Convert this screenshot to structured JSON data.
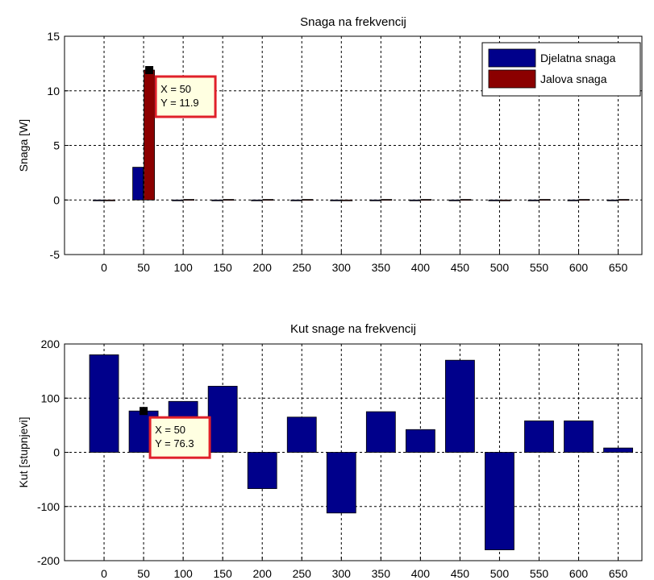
{
  "chart_data": [
    {
      "type": "bar",
      "title": "Snaga na frekvencij",
      "xlabel": "",
      "ylabel": "Snaga [W]",
      "ylim": [
        -5,
        15
      ],
      "xlim": [
        -50,
        680
      ],
      "yticks": [
        -5,
        0,
        5,
        10,
        15
      ],
      "xticks": [
        0,
        50,
        100,
        150,
        200,
        250,
        300,
        350,
        400,
        450,
        500,
        550,
        600,
        650
      ],
      "grid": true,
      "legend_position": "top-right",
      "x": [
        0,
        50,
        100,
        150,
        200,
        250,
        300,
        350,
        400,
        450,
        500,
        550,
        600,
        650
      ],
      "series": [
        {
          "name": "Djelatna snaga",
          "color": "#00008b",
          "values": [
            0,
            3.0,
            0,
            0,
            0,
            0,
            0,
            0,
            0,
            0,
            0,
            0,
            0,
            0
          ]
        },
        {
          "name": "Jalova snaga",
          "color": "#8b0000",
          "values": [
            0,
            11.9,
            0.05,
            0.05,
            0.05,
            0.05,
            0,
            0.05,
            0.05,
            0.05,
            0,
            0.05,
            0.05,
            0.05
          ]
        }
      ],
      "datatip": {
        "x": 50,
        "y": 11.9,
        "text_x": "X = 50",
        "text_y": "Y = 11.9"
      }
    },
    {
      "type": "bar",
      "title": "Kut snage na frekvencij",
      "xlabel": "",
      "ylabel": "Kut [stupnjevi]",
      "ylim": [
        -200,
        200
      ],
      "xlim": [
        -50,
        680
      ],
      "yticks": [
        -200,
        -100,
        0,
        100,
        200
      ],
      "xticks": [
        0,
        50,
        100,
        150,
        200,
        250,
        300,
        350,
        400,
        450,
        500,
        550,
        600,
        650
      ],
      "grid": true,
      "x": [
        0,
        50,
        100,
        150,
        200,
        250,
        300,
        350,
        400,
        450,
        500,
        550,
        600,
        650
      ],
      "series": [
        {
          "color": "#00008b",
          "values": [
            180,
            76.3,
            94,
            122,
            -67,
            65,
            -112,
            75,
            42,
            170,
            -180,
            58,
            58,
            8
          ]
        }
      ],
      "datatip": {
        "x": 50,
        "y": 76.3,
        "text_x": "X = 50",
        "text_y": "Y = 76.3"
      }
    }
  ]
}
